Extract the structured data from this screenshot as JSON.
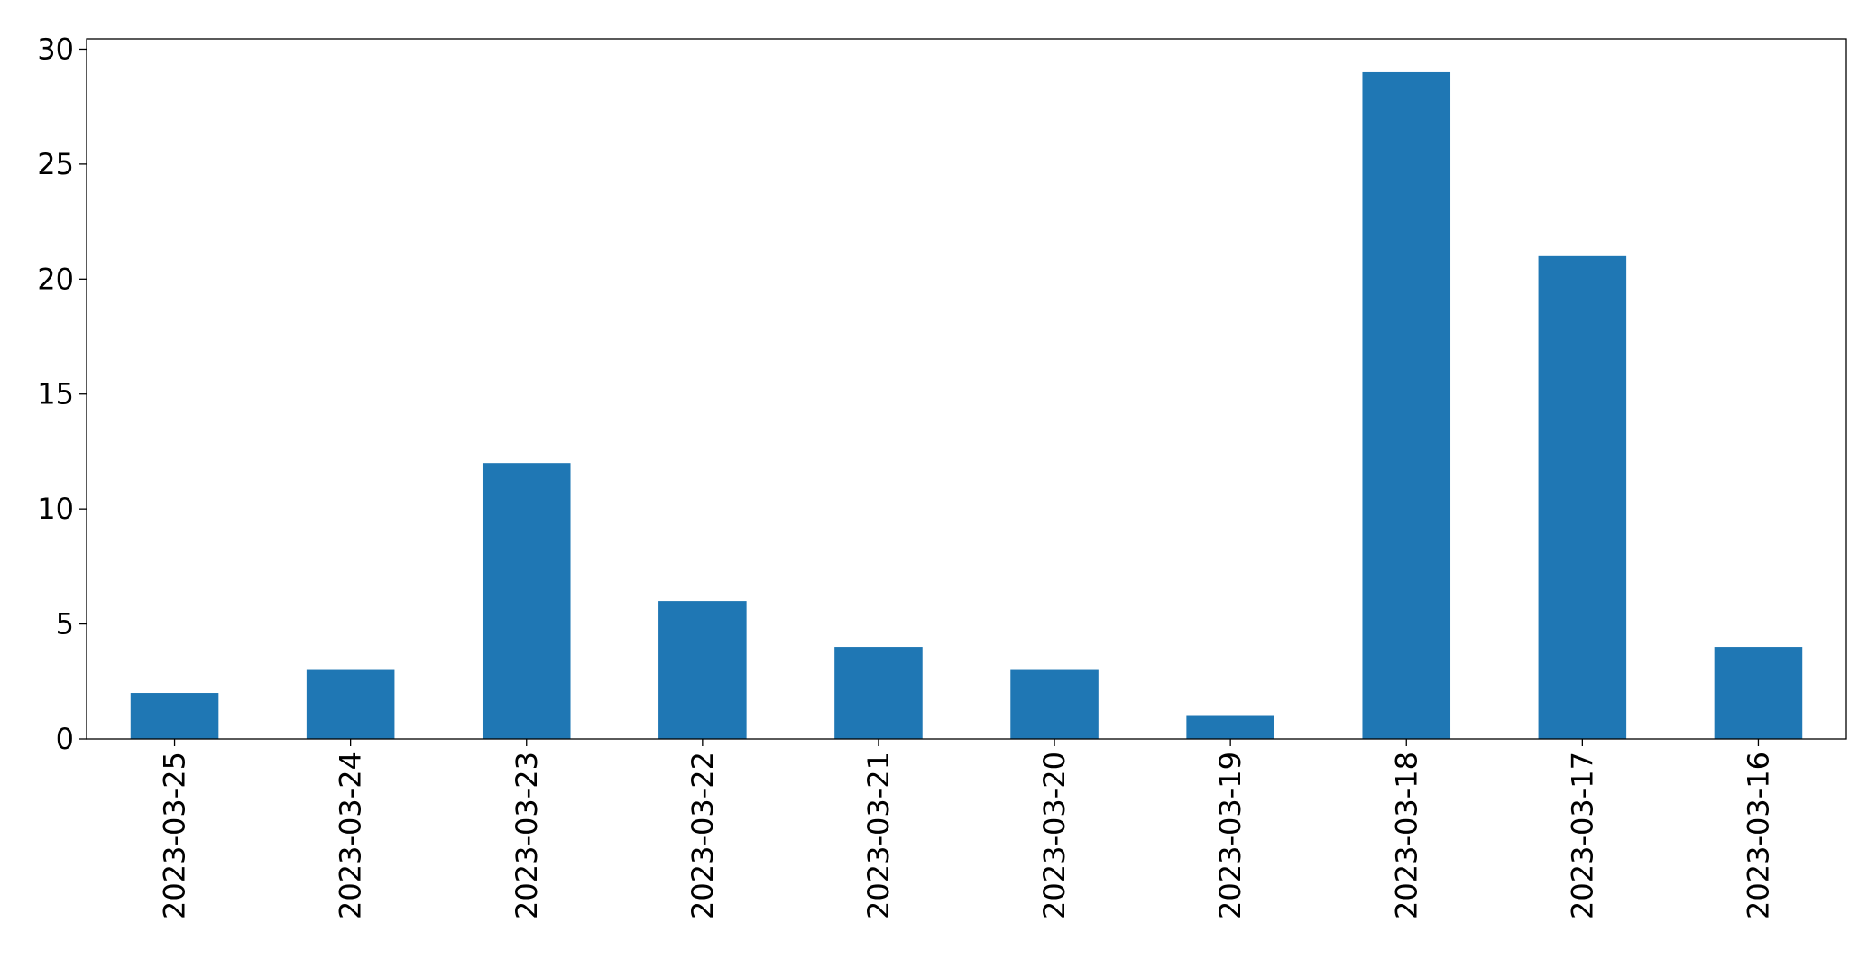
{
  "chart_data": {
    "type": "bar",
    "categories": [
      "2023-03-25",
      "2023-03-24",
      "2023-03-23",
      "2023-03-22",
      "2023-03-21",
      "2023-03-20",
      "2023-03-19",
      "2023-03-18",
      "2023-03-17",
      "2023-03-16"
    ],
    "values": [
      2,
      3,
      12,
      6,
      4,
      3,
      1,
      29,
      21,
      4
    ],
    "color": "#1f77b4",
    "ylim": [
      0,
      30.45
    ],
    "yticks": [
      0,
      5,
      10,
      15,
      20,
      25,
      30
    ],
    "grid": false
  }
}
